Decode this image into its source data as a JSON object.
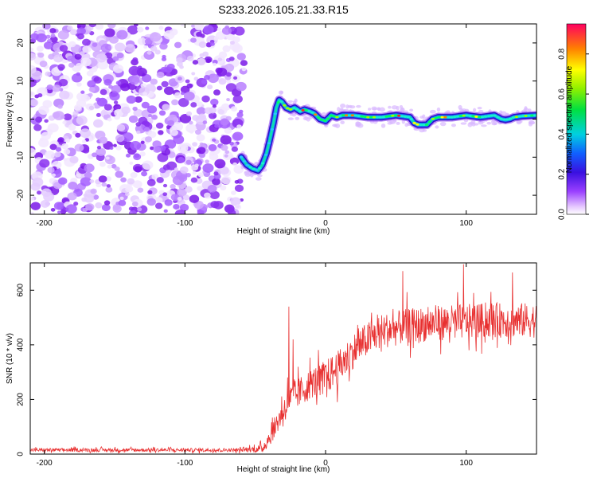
{
  "title": "S233.2026.105.21.33.R15",
  "chart_data": [
    {
      "type": "heatmap",
      "xlabel": "Height of straight line (km)",
      "ylabel": "Frequency (Hz)",
      "xlim": [
        -210,
        150
      ],
      "ylim": [
        -25,
        25
      ],
      "xticks": [
        -200,
        -100,
        0,
        100
      ],
      "yticks": [
        -20,
        -10,
        0,
        10,
        20
      ],
      "noise_region_x": [
        -210,
        -58
      ],
      "ridge_line": {
        "x": [
          -60,
          -56,
          -52,
          -48,
          -45,
          -42,
          -40,
          -37,
          -35,
          -33,
          -31,
          -28,
          -25,
          -22,
          -18,
          -15,
          -11,
          -8,
          -4,
          0,
          4,
          8,
          12,
          20,
          30,
          40,
          50,
          60,
          63,
          66,
          69,
          72,
          76,
          80,
          90,
          100,
          110,
          120,
          125,
          128,
          131,
          134,
          140,
          150
        ],
        "y": [
          -10,
          -12,
          -13,
          -13.5,
          -12,
          -9,
          -6,
          -1,
          3,
          5,
          4.5,
          3,
          2.5,
          3,
          2,
          2.5,
          2,
          1.5,
          0,
          -0.5,
          1,
          0.5,
          1,
          1,
          0.5,
          0.5,
          1,
          0.5,
          -1,
          -1.5,
          -1.5,
          -1.5,
          0,
          0.5,
          0.5,
          1,
          0.5,
          1,
          0,
          -0.2,
          0,
          0.5,
          0.8,
          1
        ]
      },
      "colorbar": {
        "label": "Normalized spectral amplitude",
        "range": [
          0,
          0.95
        ],
        "ticks": [
          0.0,
          0.2,
          0.4,
          0.6,
          0.8
        ]
      }
    },
    {
      "type": "line",
      "xlabel": "Height of straight line (km)",
      "ylabel": "SNR (10 * v/v)",
      "xlim": [
        -210,
        150
      ],
      "ylim": [
        0,
        700
      ],
      "xticks": [
        -200,
        -100,
        0,
        100
      ],
      "yticks": [
        0,
        200,
        400,
        600
      ],
      "color": "#e83030",
      "series": [
        {
          "name": "SNR",
          "envelope_x": [
            -210,
            -60,
            -45,
            -40,
            -35,
            -30,
            -27,
            -20,
            -10,
            0,
            10,
            20,
            30,
            40,
            50,
            60,
            80,
            100,
            120,
            150
          ],
          "envelope_mean": [
            15,
            15,
            20,
            60,
            110,
            160,
            190,
            220,
            260,
            280,
            320,
            380,
            420,
            450,
            460,
            470,
            480,
            485,
            490,
            490
          ],
          "envelope_spread": [
            8,
            8,
            20,
            40,
            50,
            60,
            70,
            70,
            70,
            80,
            80,
            80,
            80,
            80,
            80,
            80,
            80,
            80,
            80,
            80
          ],
          "spikes": [
            {
              "x": -26,
              "y": 540
            },
            {
              "x": -23,
              "y": 420
            },
            {
              "x": 55,
              "y": 670
            },
            {
              "x": 98,
              "y": 695
            },
            {
              "x": 133,
              "y": 665
            }
          ]
        }
      ]
    }
  ]
}
